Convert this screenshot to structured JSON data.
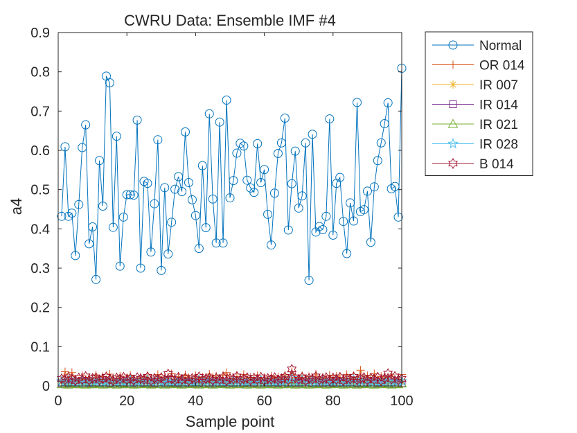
{
  "chart_data": {
    "type": "line",
    "title": "CWRU Data: Ensemble IMF #4",
    "xlabel": "Sample point",
    "ylabel": "a4",
    "xlim": [
      0,
      100
    ],
    "ylim": [
      0,
      0.9
    ],
    "xticks": [
      0,
      20,
      40,
      60,
      80,
      100
    ],
    "yticks": [
      0,
      0.1,
      0.2,
      0.3,
      0.4,
      0.5,
      0.6,
      0.7,
      0.8,
      0.9
    ],
    "xtick_labels": [
      "0",
      "20",
      "40",
      "60",
      "80",
      "100"
    ],
    "ytick_labels": [
      "0",
      "0.1",
      "0.2",
      "0.3",
      "0.4",
      "0.5",
      "0.6",
      "0.7",
      "0.8",
      "0.9"
    ],
    "grid": false,
    "legend_position": "outside-right-top",
    "x": [
      1,
      2,
      3,
      4,
      5,
      6,
      7,
      8,
      9,
      10,
      11,
      12,
      13,
      14,
      15,
      16,
      17,
      18,
      19,
      20,
      21,
      22,
      23,
      24,
      25,
      26,
      27,
      28,
      29,
      30,
      31,
      32,
      33,
      34,
      35,
      36,
      37,
      38,
      39,
      40,
      41,
      42,
      43,
      44,
      45,
      46,
      47,
      48,
      49,
      50,
      51,
      52,
      53,
      54,
      55,
      56,
      57,
      58,
      59,
      60,
      61,
      62,
      63,
      64,
      65,
      66,
      67,
      68,
      69,
      70,
      71,
      72,
      73,
      74,
      75,
      76,
      77,
      78,
      79,
      80,
      81,
      82,
      83,
      84,
      85,
      86,
      87,
      88,
      89,
      90,
      91,
      92,
      93,
      94,
      95,
      96,
      97,
      98,
      99,
      100
    ],
    "series": [
      {
        "name": "Normal",
        "color": "#0072BD",
        "marker": "circle",
        "values": [
          0.432,
          0.609,
          0.432,
          0.44,
          0.332,
          0.462,
          0.607,
          0.665,
          0.362,
          0.405,
          0.271,
          0.574,
          0.458,
          0.789,
          0.772,
          0.404,
          0.636,
          0.305,
          0.43,
          0.487,
          0.487,
          0.486,
          0.677,
          0.3,
          0.521,
          0.516,
          0.341,
          0.464,
          0.627,
          0.294,
          0.505,
          0.336,
          0.417,
          0.501,
          0.533,
          0.495,
          0.647,
          0.518,
          0.474,
          0.434,
          0.35,
          0.561,
          0.403,
          0.693,
          0.476,
          0.364,
          0.672,
          0.364,
          0.728,
          0.479,
          0.523,
          0.593,
          0.618,
          0.611,
          0.524,
          0.504,
          0.493,
          0.617,
          0.518,
          0.551,
          0.437,
          0.359,
          0.491,
          0.592,
          0.619,
          0.682,
          0.397,
          0.515,
          0.598,
          0.453,
          0.484,
          0.619,
          0.269,
          0.641,
          0.392,
          0.406,
          0.398,
          0.432,
          0.68,
          0.384,
          0.516,
          0.531,
          0.419,
          0.337,
          0.466,
          0.42,
          0.722,
          0.444,
          0.449,
          0.496,
          0.366,
          0.507,
          0.574,
          0.619,
          0.668,
          0.721,
          0.502,
          0.508,
          0.43,
          0.809
        ]
      },
      {
        "name": "OR 014",
        "color": "#D95319",
        "marker": "plus",
        "values": [
          0.014,
          0.036,
          0.02,
          0.034,
          0.018,
          0.012,
          0.026,
          0.015,
          0.022,
          0.011,
          0.028,
          0.017,
          0.024,
          0.013,
          0.03,
          0.019,
          0.016,
          0.025,
          0.012,
          0.021,
          0.027,
          0.018,
          0.014,
          0.023,
          0.019,
          0.026,
          0.013,
          0.02,
          0.029,
          0.016,
          0.022,
          0.018,
          0.031,
          0.015,
          0.024,
          0.017,
          0.028,
          0.021,
          0.014,
          0.026,
          0.019,
          0.023,
          0.016,
          0.03,
          0.018,
          0.025,
          0.013,
          0.027,
          0.034,
          0.02,
          0.017,
          0.024,
          0.015,
          0.029,
          0.019,
          0.022,
          0.016,
          0.026,
          0.018,
          0.021,
          0.014,
          0.025,
          0.017,
          0.023,
          0.019,
          0.028,
          0.016,
          0.036,
          0.021,
          0.018,
          0.026,
          0.014,
          0.024,
          0.017,
          0.03,
          0.019,
          0.022,
          0.015,
          0.027,
          0.018,
          0.025,
          0.021,
          0.016,
          0.029,
          0.019,
          0.023,
          0.017,
          0.04,
          0.02,
          0.026,
          0.018,
          0.031,
          0.016,
          0.024,
          0.019,
          0.022,
          0.028,
          0.017,
          0.021,
          0.029
        ]
      },
      {
        "name": "IR 007",
        "color": "#EDB120",
        "marker": "asterisk",
        "values": [
          0.01,
          0.012,
          0.008,
          0.014,
          0.011,
          0.009,
          0.013,
          0.01,
          0.012,
          0.008,
          0.015,
          0.011,
          0.009,
          0.013,
          0.01,
          0.012,
          0.014,
          0.009,
          0.011,
          0.013,
          0.01,
          0.008,
          0.012,
          0.014,
          0.011,
          0.009,
          0.013,
          0.01,
          0.012,
          0.015,
          0.011,
          0.009,
          0.013,
          0.01,
          0.012,
          0.008,
          0.014,
          0.011,
          0.009,
          0.013,
          0.01,
          0.012,
          0.014,
          0.011,
          0.009,
          0.013,
          0.01,
          0.012,
          0.008,
          0.015,
          0.011,
          0.009,
          0.013,
          0.01,
          0.012,
          0.014,
          0.011,
          0.009,
          0.013,
          0.01,
          0.012,
          0.008,
          0.014,
          0.011,
          0.009,
          0.013,
          0.01,
          0.012,
          0.015,
          0.011,
          0.009,
          0.013,
          0.01,
          0.012,
          0.014,
          0.011,
          0.009,
          0.013,
          0.01,
          0.012,
          0.008,
          0.014,
          0.011,
          0.009,
          0.013,
          0.01,
          0.012,
          0.015,
          0.011,
          0.009,
          0.013,
          0.01,
          0.012,
          0.014,
          0.011,
          0.009,
          0.013,
          0.01,
          0.012,
          0.011
        ]
      },
      {
        "name": "IR 014",
        "color": "#7E2F8E",
        "marker": "square",
        "values": [
          0.006,
          0.004,
          0.007,
          0.005,
          0.008,
          0.004,
          0.006,
          0.005,
          0.007,
          0.004,
          0.006,
          0.008,
          0.005,
          0.004,
          0.007,
          0.006,
          0.005,
          0.008,
          0.004,
          0.006,
          0.005,
          0.007,
          0.004,
          0.006,
          0.008,
          0.005,
          0.004,
          0.007,
          0.006,
          0.005,
          0.008,
          0.004,
          0.006,
          0.005,
          0.007,
          0.004,
          0.006,
          0.008,
          0.005,
          0.004,
          0.007,
          0.006,
          0.005,
          0.008,
          0.004,
          0.006,
          0.005,
          0.007,
          0.004,
          0.006,
          0.008,
          0.005,
          0.004,
          0.007,
          0.006,
          0.005,
          0.008,
          0.004,
          0.006,
          0.005,
          0.007,
          0.004,
          0.006,
          0.008,
          0.005,
          0.004,
          0.007,
          0.006,
          0.005,
          0.008,
          0.004,
          0.006,
          0.005,
          0.007,
          0.004,
          0.006,
          0.008,
          0.005,
          0.004,
          0.007,
          0.006,
          0.005,
          0.008,
          0.004,
          0.006,
          0.005,
          0.007,
          0.004,
          0.006,
          0.008,
          0.005,
          0.004,
          0.007,
          0.006,
          0.005,
          0.008,
          0.004,
          0.006,
          0.005,
          0.007
        ]
      },
      {
        "name": "IR 021",
        "color": "#77AC30",
        "marker": "triangle",
        "values": [
          0.004,
          0.006,
          0.003,
          0.005,
          0.007,
          0.004,
          0.005,
          0.003,
          0.006,
          0.004,
          0.005,
          0.007,
          0.003,
          0.005,
          0.004,
          0.006,
          0.003,
          0.005,
          0.007,
          0.004,
          0.005,
          0.003,
          0.006,
          0.004,
          0.005,
          0.007,
          0.003,
          0.005,
          0.004,
          0.006,
          0.003,
          0.005,
          0.007,
          0.004,
          0.005,
          0.003,
          0.006,
          0.004,
          0.005,
          0.007,
          0.003,
          0.005,
          0.004,
          0.006,
          0.003,
          0.005,
          0.007,
          0.004,
          0.005,
          0.003,
          0.006,
          0.004,
          0.005,
          0.007,
          0.003,
          0.005,
          0.004,
          0.006,
          0.003,
          0.005,
          0.007,
          0.004,
          0.005,
          0.003,
          0.006,
          0.004,
          0.005,
          0.007,
          0.003,
          0.005,
          0.004,
          0.006,
          0.003,
          0.005,
          0.007,
          0.004,
          0.005,
          0.003,
          0.006,
          0.004,
          0.005,
          0.007,
          0.003,
          0.005,
          0.004,
          0.006,
          0.003,
          0.005,
          0.007,
          0.004,
          0.005,
          0.003,
          0.006,
          0.004,
          0.005,
          0.007,
          0.003,
          0.005,
          0.004,
          0.006
        ]
      },
      {
        "name": "IR 028",
        "color": "#4DBEEE",
        "marker": "pentagram",
        "values": [
          0.012,
          0.009,
          0.014,
          0.01,
          0.013,
          0.008,
          0.015,
          0.011,
          0.009,
          0.013,
          0.01,
          0.014,
          0.008,
          0.012,
          0.011,
          0.015,
          0.009,
          0.013,
          0.01,
          0.012,
          0.014,
          0.008,
          0.011,
          0.013,
          0.009,
          0.015,
          0.01,
          0.012,
          0.014,
          0.008,
          0.011,
          0.013,
          0.009,
          0.012,
          0.01,
          0.014,
          0.008,
          0.013,
          0.011,
          0.009,
          0.015,
          0.01,
          0.012,
          0.014,
          0.008,
          0.011,
          0.013,
          0.009,
          0.012,
          0.01,
          0.014,
          0.008,
          0.013,
          0.011,
          0.009,
          0.015,
          0.01,
          0.012,
          0.014,
          0.008,
          0.011,
          0.013,
          0.009,
          0.012,
          0.01,
          0.014,
          0.008,
          0.02,
          0.011,
          0.009,
          0.015,
          0.01,
          0.012,
          0.014,
          0.008,
          0.011,
          0.013,
          0.009,
          0.012,
          0.01,
          0.014,
          0.008,
          0.013,
          0.011,
          0.009,
          0.015,
          0.01,
          0.012,
          0.014,
          0.008,
          0.011,
          0.013,
          0.009,
          0.012,
          0.01,
          0.014,
          0.008,
          0.013,
          0.011,
          0.012
        ]
      },
      {
        "name": "B 014",
        "color": "#A2142F",
        "marker": "hexagram",
        "values": [
          0.018,
          0.015,
          0.022,
          0.017,
          0.013,
          0.02,
          0.016,
          0.024,
          0.014,
          0.019,
          0.021,
          0.015,
          0.018,
          0.023,
          0.016,
          0.013,
          0.02,
          0.017,
          0.022,
          0.015,
          0.019,
          0.014,
          0.021,
          0.018,
          0.016,
          0.023,
          0.013,
          0.019,
          0.017,
          0.021,
          0.015,
          0.03,
          0.018,
          0.014,
          0.022,
          0.016,
          0.02,
          0.013,
          0.019,
          0.017,
          0.023,
          0.015,
          0.018,
          0.021,
          0.014,
          0.02,
          0.016,
          0.022,
          0.013,
          0.019,
          0.017,
          0.024,
          0.015,
          0.018,
          0.021,
          0.014,
          0.02,
          0.016,
          0.022,
          0.013,
          0.019,
          0.017,
          0.021,
          0.015,
          0.018,
          0.023,
          0.014,
          0.042,
          0.02,
          0.016,
          0.022,
          0.013,
          0.019,
          0.017,
          0.024,
          0.015,
          0.018,
          0.021,
          0.014,
          0.02,
          0.016,
          0.022,
          0.013,
          0.019,
          0.017,
          0.023,
          0.015,
          0.018,
          0.021,
          0.014,
          0.02,
          0.016,
          0.022,
          0.013,
          0.019,
          0.031,
          0.017,
          0.024,
          0.015,
          0.018
        ]
      }
    ]
  }
}
